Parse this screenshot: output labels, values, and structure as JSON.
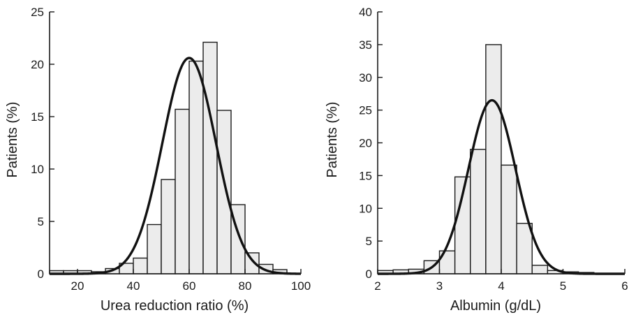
{
  "chart_data": [
    {
      "type": "histogram",
      "title": "",
      "xlabel": "Urea reduction ratio (%)",
      "ylabel": "Patients (%)",
      "xlim": [
        10,
        100
      ],
      "ylim": [
        0,
        25
      ],
      "xticks": [
        20,
        40,
        60,
        80,
        100
      ],
      "yticks": [
        0,
        5,
        10,
        15,
        20,
        25
      ],
      "grid": false,
      "bins": [
        {
          "x0": 10,
          "x1": 15,
          "value": 0.3
        },
        {
          "x0": 15,
          "x1": 20,
          "value": 0.3
        },
        {
          "x0": 20,
          "x1": 25,
          "value": 0.3
        },
        {
          "x0": 25,
          "x1": 30,
          "value": 0.2
        },
        {
          "x0": 30,
          "x1": 35,
          "value": 0.5
        },
        {
          "x0": 35,
          "x1": 40,
          "value": 1.0
        },
        {
          "x0": 40,
          "x1": 45,
          "value": 1.5
        },
        {
          "x0": 45,
          "x1": 50,
          "value": 4.7
        },
        {
          "x0": 50,
          "x1": 55,
          "value": 9.0
        },
        {
          "x0": 55,
          "x1": 60,
          "value": 15.7
        },
        {
          "x0": 60,
          "x1": 65,
          "value": 20.3
        },
        {
          "x0": 65,
          "x1": 70,
          "value": 22.1
        },
        {
          "x0": 70,
          "x1": 75,
          "value": 15.6
        },
        {
          "x0": 75,
          "x1": 80,
          "value": 6.6
        },
        {
          "x0": 80,
          "x1": 85,
          "value": 2.0
        },
        {
          "x0": 85,
          "x1": 90,
          "value": 0.9
        },
        {
          "x0": 90,
          "x1": 95,
          "value": 0.4
        }
      ],
      "fit_curve": {
        "type": "normal",
        "mean": 60,
        "sd": 9.6,
        "peak": 20.6
      }
    },
    {
      "type": "histogram",
      "title": "",
      "xlabel": "Albumin (g/dL)",
      "ylabel": "Patients (%)",
      "xlim": [
        2,
        6
      ],
      "ylim": [
        0,
        40
      ],
      "xticks": [
        2,
        3,
        4,
        5,
        6
      ],
      "yticks": [
        0,
        5,
        10,
        15,
        20,
        25,
        30,
        35,
        40
      ],
      "grid": false,
      "bins": [
        {
          "x0": 2.0,
          "x1": 2.25,
          "value": 0.5
        },
        {
          "x0": 2.25,
          "x1": 2.5,
          "value": 0.6
        },
        {
          "x0": 2.5,
          "x1": 2.75,
          "value": 0.7
        },
        {
          "x0": 2.75,
          "x1": 3.0,
          "value": 2.0
        },
        {
          "x0": 3.0,
          "x1": 3.25,
          "value": 3.5
        },
        {
          "x0": 3.25,
          "x1": 3.5,
          "value": 14.8
        },
        {
          "x0": 3.5,
          "x1": 3.75,
          "value": 19.0
        },
        {
          "x0": 3.75,
          "x1": 4.0,
          "value": 35.0
        },
        {
          "x0": 4.0,
          "x1": 4.25,
          "value": 16.6
        },
        {
          "x0": 4.25,
          "x1": 4.5,
          "value": 7.7
        },
        {
          "x0": 4.5,
          "x1": 4.75,
          "value": 1.3
        },
        {
          "x0": 4.75,
          "x1": 5.0,
          "value": 0.5
        },
        {
          "x0": 5.0,
          "x1": 5.25,
          "value": 0.3
        },
        {
          "x0": 5.25,
          "x1": 5.5,
          "value": 0.2
        }
      ],
      "fit_curve": {
        "type": "normal",
        "mean": 3.85,
        "sd": 0.38,
        "peak": 26.5
      }
    }
  ]
}
